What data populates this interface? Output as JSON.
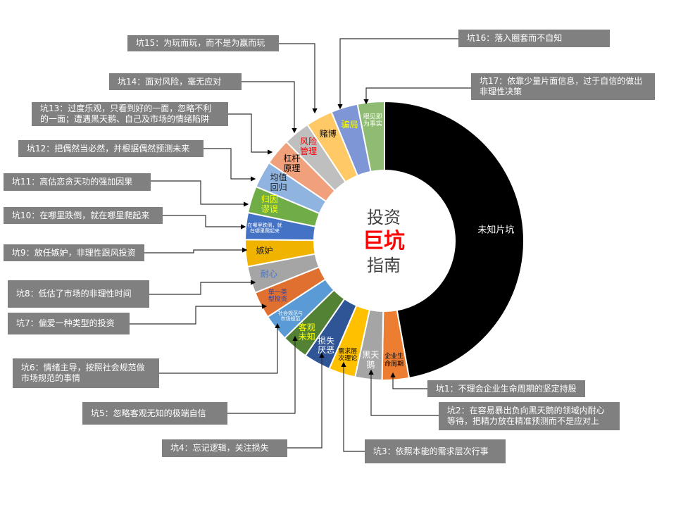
{
  "title": {
    "line1": "投资",
    "line2": "巨坑",
    "line3": "指南"
  },
  "segments": [
    {
      "label": "未知片坑",
      "color": "#000000",
      "text_color": "#ffffff",
      "value": 170
    },
    {
      "label": "企业生命周期",
      "color": "#ED7D31",
      "text_color": "#000000",
      "value": 11.2
    },
    {
      "label": "黑天鹅",
      "color": "#A5A5A5",
      "text_color": "#ffffff",
      "value": 11.2
    },
    {
      "label": "需求层次理论",
      "color": "#FFC000",
      "text_color": "#000000",
      "value": 11.2
    },
    {
      "label": "损失厌恶",
      "color": "#2F5597",
      "text_color": "#ffffff",
      "value": 11.2
    },
    {
      "label": "客观未知",
      "color": "#548235",
      "text_color": "#FFFF00",
      "value": 11.2
    },
    {
      "label": "社会规范与市场规范",
      "color": "#5B9BD5",
      "text_color": "#ffffff",
      "value": 11.2
    },
    {
      "label": "单一类型投资",
      "color": "#E07030",
      "text_color": "#2F3F9F",
      "value": 11.2
    },
    {
      "label": "耐心",
      "color": "#A5A5A5",
      "text_color": "#4472C4",
      "value": 11.2
    },
    {
      "label": "嫉妒",
      "color": "#F0B400",
      "text_color": "#222222",
      "value": 11.2
    },
    {
      "label": "在哪里跌倒，就在哪里爬起来",
      "color": "#4472C4",
      "text_color": "#ffffff",
      "value": 11.2
    },
    {
      "label": "归因谬误",
      "color": "#70AD47",
      "text_color": "#FFFF00",
      "value": 11.2
    },
    {
      "label": "均值回归",
      "color": "#8FB4E0",
      "text_color": "#222222",
      "value": 11.2
    },
    {
      "label": "杠杆原理",
      "color": "#F0A07A",
      "text_color": "#000000",
      "value": 11.2
    },
    {
      "label": "风险管理",
      "color": "#BFBFBF",
      "text_color": "#FF0000",
      "value": 11.2
    },
    {
      "label": "赌博",
      "color": "#FFC966",
      "text_color": "#000000",
      "value": 11.2
    },
    {
      "label": "骗局",
      "color": "#7F96D6",
      "text_color": "#FFFF00",
      "value": 11.2
    },
    {
      "label": "眼见即为事实",
      "color": "#8FBC72",
      "text_color": "#ffffff",
      "value": 11.2
    }
  ],
  "callouts": [
    "坑1：不理会企业生命周期的坚定持股",
    "坑2：在容易暴出负向黑天鹅的领域内耐心等待，把精力放在精准预测而不是应对上",
    "坑3：依照本能的需求层次行事",
    "坑4：忘记逻辑，关注损失",
    "坑5：忽略客观无知的极端自信",
    "坑6：情绪主导，按照社会规范做市场规范的事情",
    "坑7：偏爱一种类型的投资",
    "坑8：低估了市场的非理性时间",
    "坑9：放任嫉妒，非理性跟风投资",
    "坑10：在哪里跌倒，就在哪里爬起来",
    "坑11：高估恋贪天功的强加因果",
    "坑12：把偶然当必然，并根据偶然预测未来",
    "坑13：过度乐观，只看到好的一面，忽略不利的一面；遭遇黑天鹅、自己及市场的情绪陷阱",
    "坑14：面对风险，毫无应对",
    "坑15：为玩而玩，而不是为赢而玩",
    "坑16：落入圈套而不自知",
    "坑17：依靠少量片面信息，过于自信的做出非理性决策"
  ]
}
